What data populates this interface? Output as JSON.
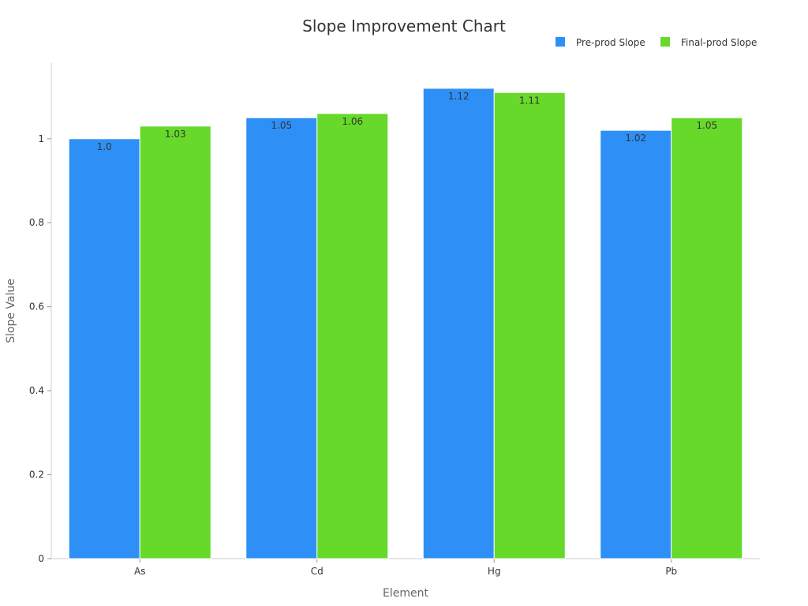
{
  "chart_data": {
    "type": "bar",
    "title": "Slope Improvement Chart",
    "xlabel": "Element",
    "ylabel": "Slope Value",
    "categories": [
      "As",
      "Cd",
      "Hg",
      "Pb"
    ],
    "series": [
      {
        "name": "Pre-prod Slope",
        "color": "#2e90f7",
        "values": [
          1.0,
          1.05,
          1.12,
          1.02
        ],
        "labels": [
          "1.0",
          "1.05",
          "1.12",
          "1.02"
        ]
      },
      {
        "name": "Final-prod Slope",
        "color": "#66d92a",
        "values": [
          1.03,
          1.06,
          1.11,
          1.05
        ],
        "labels": [
          "1.03",
          "1.06",
          "1.11",
          "1.05"
        ]
      }
    ],
    "ylim": [
      0,
      1.18
    ],
    "yticks": [
      0,
      0.2,
      0.4,
      0.6,
      0.8,
      1
    ],
    "ytick_labels": [
      "0",
      "0.2",
      "0.4",
      "0.6",
      "0.8",
      "1"
    ],
    "grid": false,
    "legend_position": "top-right"
  }
}
